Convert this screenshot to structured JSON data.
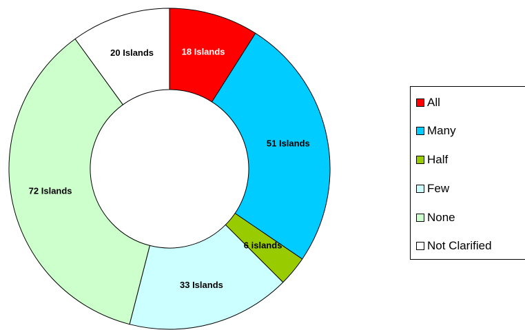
{
  "chart_data": {
    "type": "pie",
    "donut": true,
    "categories": [
      "All",
      "Many",
      "Half",
      "Few",
      "None",
      "Not Clarified"
    ],
    "values": [
      18,
      51,
      6,
      33,
      72,
      20
    ],
    "data_labels": [
      "18 Islands",
      "51 Islands",
      "6 islands",
      "33 Islands",
      "72 Islands",
      "20 Islands"
    ],
    "colors": [
      "#ff0000",
      "#00ccff",
      "#99cc00",
      "#ccffff",
      "#ccffcc",
      "#ffffff"
    ],
    "label_colors": [
      "#ffffff",
      "#000000",
      "#000000",
      "#000000",
      "#000000",
      "#000000"
    ],
    "start_angle": "12 o'clock",
    "direction": "clockwise",
    "legend_placement": "right",
    "title": "",
    "grid": false
  }
}
